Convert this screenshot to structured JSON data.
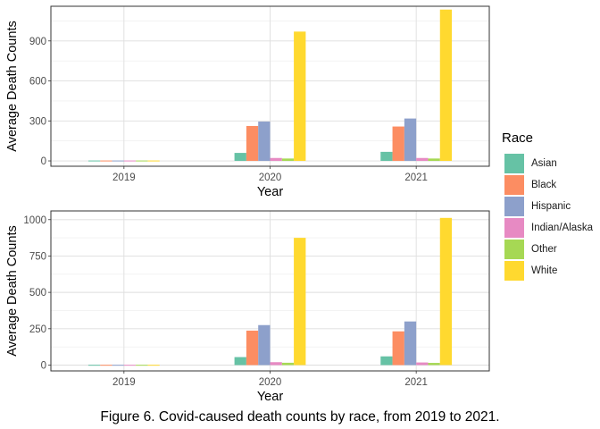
{
  "colors": {
    "Asian": "#66C2A5",
    "Black": "#FC8D62",
    "Hispanic": "#8DA0CB",
    "Indian/Alaska": "#E78AC3",
    "Other": "#A6D854",
    "White": "#FFD92F"
  },
  "legend": {
    "title": "Race",
    "items": [
      "Asian",
      "Black",
      "Hispanic",
      "Indian/Alaska",
      "Other",
      "White"
    ]
  },
  "caption": "Figure 6. Covid-caused death counts by race, from 2019 to 2021.",
  "chart_data": [
    {
      "type": "bar",
      "xlabel": "Year",
      "ylabel": "Average Death Counts",
      "categories": [
        "2019",
        "2020",
        "2021"
      ],
      "ylim": [
        -40,
        1160
      ],
      "yticks": [
        0,
        300,
        600,
        900
      ],
      "ytick_labels": [
        "0",
        "300",
        "600",
        "900"
      ],
      "grid": true,
      "series": [
        {
          "name": "Asian",
          "values": [
            3,
            60,
            68
          ]
        },
        {
          "name": "Black",
          "values": [
            3,
            262,
            258
          ]
        },
        {
          "name": "Hispanic",
          "values": [
            3,
            295,
            318
          ]
        },
        {
          "name": "Indian/Alaska",
          "values": [
            3,
            22,
            22
          ]
        },
        {
          "name": "Other",
          "values": [
            3,
            18,
            18
          ]
        },
        {
          "name": "White",
          "values": [
            3,
            970,
            1135
          ]
        }
      ]
    },
    {
      "type": "bar",
      "xlabel": "Year",
      "ylabel": "Average Death Counts",
      "categories": [
        "2019",
        "2020",
        "2021"
      ],
      "ylim": [
        -40,
        1060
      ],
      "yticks": [
        0,
        250,
        500,
        750,
        1000
      ],
      "ytick_labels": [
        "0",
        "250",
        "500",
        "750",
        "1000"
      ],
      "grid": true,
      "series": [
        {
          "name": "Asian",
          "values": [
            2,
            55,
            60
          ]
        },
        {
          "name": "Black",
          "values": [
            2,
            237,
            232
          ]
        },
        {
          "name": "Hispanic",
          "values": [
            2,
            275,
            300
          ]
        },
        {
          "name": "Indian/Alaska",
          "values": [
            2,
            20,
            18
          ]
        },
        {
          "name": "Other",
          "values": [
            2,
            16,
            15
          ]
        },
        {
          "name": "White",
          "values": [
            2,
            875,
            1012
          ]
        }
      ]
    }
  ]
}
